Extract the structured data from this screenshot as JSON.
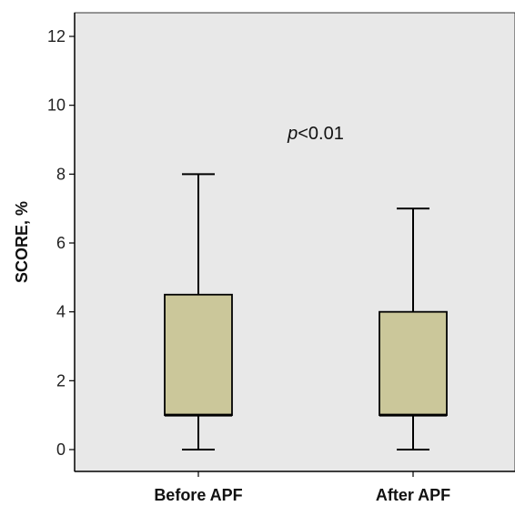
{
  "chart_data": {
    "type": "boxplot",
    "ylabel": "SCORE, %",
    "ylim": [
      0,
      12
    ],
    "yticks": [
      0,
      2,
      4,
      6,
      8,
      10,
      12
    ],
    "categories": [
      "Before APF",
      "After APF"
    ],
    "boxes": [
      {
        "category": "Before APF",
        "whisker_low": 0,
        "q1": 1,
        "median": 1,
        "q3": 4.5,
        "whisker_high": 8
      },
      {
        "category": "After APF",
        "whisker_low": 0,
        "q1": 1,
        "median": 1,
        "q3": 4,
        "whisker_high": 7
      }
    ],
    "annotation": {
      "italic_prefix": "p",
      "rest": "<0.01"
    },
    "colors": {
      "plot_background": "#e8e8e8",
      "box_fill": "#cbc79a",
      "line": "#000000"
    }
  }
}
